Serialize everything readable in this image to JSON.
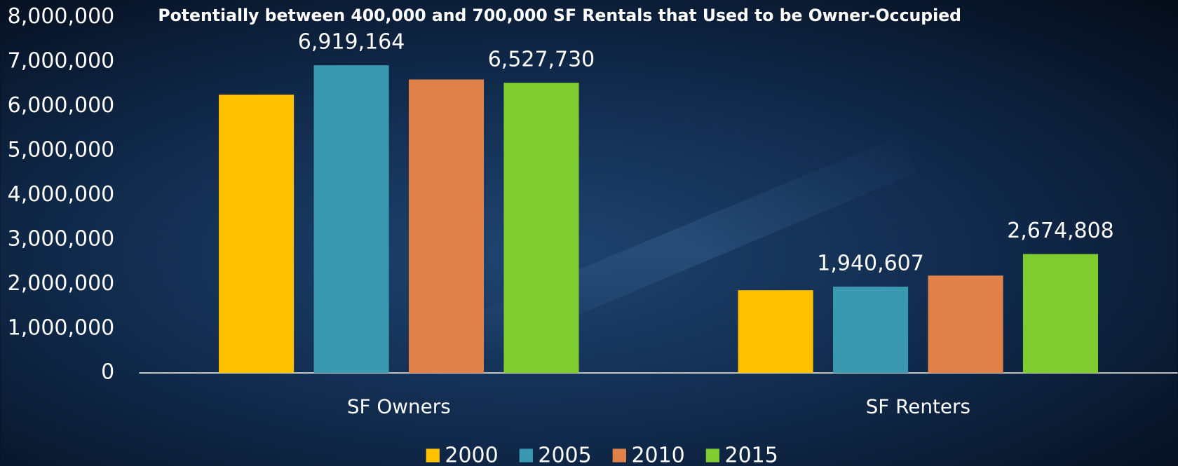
{
  "chart_data": {
    "type": "bar",
    "title": "Potentially between 400,000 and 700,000 SF Rentals that Used to be Owner-Occupied",
    "categories": [
      "SF Owners",
      "SF Renters"
    ],
    "series": [
      {
        "name": "2000",
        "color": "#ffc000",
        "values": [
          6260000,
          1860000
        ],
        "value_labels": [
          null,
          null
        ]
      },
      {
        "name": "2005",
        "color": "#3a99b0",
        "values": [
          6919164,
          1940607
        ],
        "value_labels": [
          "6,919,164",
          "1,940,607"
        ]
      },
      {
        "name": "2010",
        "color": "#e0814a",
        "values": [
          6600000,
          2190000
        ],
        "value_labels": [
          null,
          null
        ]
      },
      {
        "name": "2015",
        "color": "#7fcc31",
        "values": [
          6527730,
          2674808
        ],
        "value_labels": [
          "6,527,730",
          "2,674,808"
        ]
      }
    ],
    "ylim": [
      0,
      8000000
    ],
    "yticks": [
      0,
      {
        "value": 1000000,
        "label": "1,000,000"
      },
      {
        "value": 2000000,
        "label": "2,000,000"
      },
      {
        "value": 3000000,
        "label": "3,000,000"
      },
      {
        "value": 4000000,
        "label": "4,000,000"
      },
      {
        "value": 5000000,
        "label": "5,000,000"
      },
      {
        "value": 6000000,
        "label": "6,000,000"
      },
      {
        "value": 7000000,
        "label": "7,000,000"
      },
      {
        "value": 8000000,
        "label": "8,000,000"
      }
    ],
    "legend": "bottom"
  }
}
